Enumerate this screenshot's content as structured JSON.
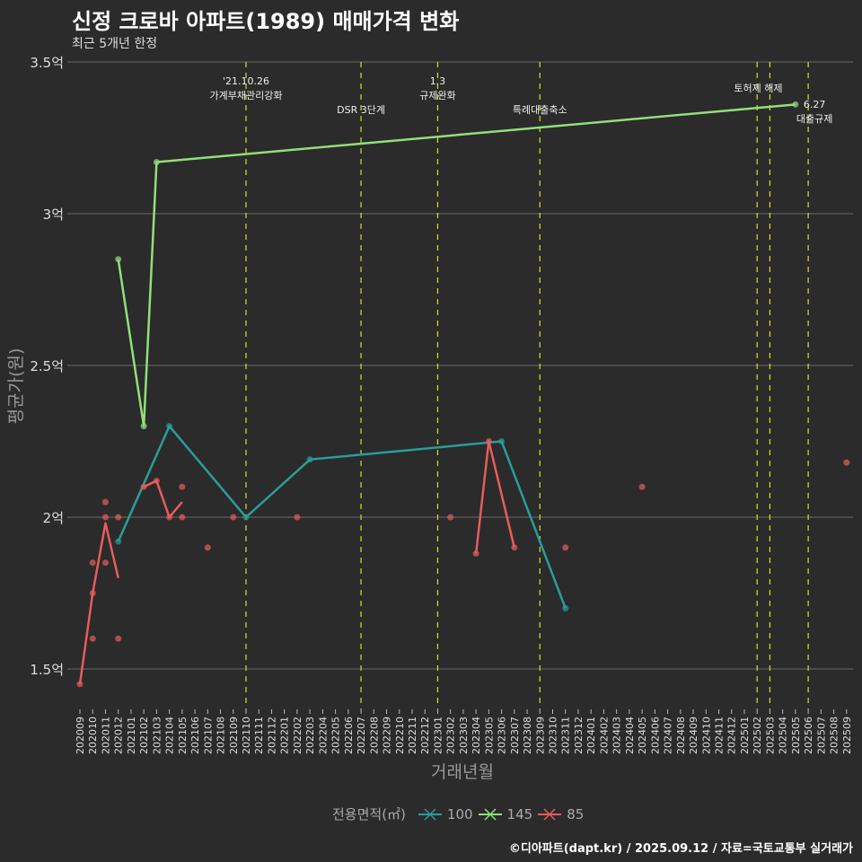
{
  "title": "신정 크로바 아파트(1989) 매매가격 변화",
  "subtitle": "최근 5개년 한정",
  "caption": "©디아파트(dapt.kr) / 2025.09.12 / 자료=국토교통부 실거래가",
  "chart_data": {
    "type": "line",
    "xlabel": "거래년월",
    "ylabel": "평균가(원)",
    "ylim": [
      1.35,
      3.55
    ],
    "yticks": [
      {
        "v": 1.5,
        "label": "1.5억"
      },
      {
        "v": 2,
        "label": "2억"
      },
      {
        "v": 2.5,
        "label": "2.5억"
      },
      {
        "v": 3,
        "label": "3억"
      },
      {
        "v": 3.5,
        "label": "3.5억"
      }
    ],
    "x": [
      "202009",
      "202010",
      "202011",
      "202012",
      "202101",
      "202102",
      "202103",
      "202104",
      "202105",
      "202106",
      "202107",
      "202108",
      "202109",
      "202110",
      "202111",
      "202112",
      "202201",
      "202202",
      "202203",
      "202204",
      "202205",
      "202206",
      "202207",
      "202208",
      "202209",
      "202210",
      "202211",
      "202212",
      "202301",
      "202302",
      "202303",
      "202304",
      "202305",
      "202306",
      "202307",
      "202308",
      "202309",
      "202310",
      "202311",
      "202312",
      "202401",
      "202402",
      "202403",
      "202404",
      "202405",
      "202406",
      "202407",
      "202408",
      "202409",
      "202410",
      "202411",
      "202412",
      "202501",
      "202502",
      "202503",
      "202504",
      "202505",
      "202506",
      "202507",
      "202508",
      "202509"
    ],
    "legend": {
      "title": "전용면적(㎡)",
      "position": "bottom"
    },
    "series": [
      {
        "name": "100",
        "color": "#2a9d9a",
        "segments": [
          [
            [
              "202012",
              1.92
            ],
            [
              "202104",
              2.3
            ],
            [
              "202110",
              2.0
            ],
            [
              "202203",
              2.19
            ],
            [
              "202306",
              2.25
            ],
            [
              "202311",
              1.7
            ]
          ]
        ],
        "points": [
          [
            "202012",
            1.92
          ],
          [
            "202104",
            2.3
          ],
          [
            "202110",
            2.0
          ],
          [
            "202203",
            2.19
          ],
          [
            "202306",
            2.25
          ],
          [
            "202311",
            1.7
          ]
        ]
      },
      {
        "name": "145",
        "color": "#90e07a",
        "segments": [
          [
            [
              "202012",
              2.85
            ],
            [
              "202102",
              2.3
            ],
            [
              "202103",
              3.17
            ],
            [
              "202505",
              3.36
            ]
          ]
        ],
        "points": [
          [
            "202012",
            2.85
          ],
          [
            "202102",
            2.3
          ],
          [
            "202103",
            3.17
          ],
          [
            "202505",
            3.36
          ]
        ]
      },
      {
        "name": "85",
        "color": "#e85c5c",
        "segments": [
          [
            [
              "202009",
              1.45
            ],
            [
              "202010",
              1.75
            ],
            [
              "202011",
              1.98
            ],
            [
              "202012",
              1.8
            ]
          ],
          [
            [
              "202102",
              2.1
            ],
            [
              "202103",
              2.12
            ],
            [
              "202104",
              2.0
            ],
            [
              "202105",
              2.05
            ]
          ],
          [
            [
              "202304",
              1.88
            ],
            [
              "202305",
              2.25
            ],
            [
              "202307",
              1.9
            ]
          ]
        ],
        "points": [
          [
            "202009",
            1.45
          ],
          [
            "202010",
            1.85
          ],
          [
            "202010",
            1.75
          ],
          [
            "202010",
            1.6
          ],
          [
            "202011",
            2.05
          ],
          [
            "202011",
            2.0
          ],
          [
            "202011",
            1.85
          ],
          [
            "202012",
            2.0
          ],
          [
            "202012",
            1.6
          ],
          [
            "202102",
            2.1
          ],
          [
            "202103",
            2.12
          ],
          [
            "202104",
            2.0
          ],
          [
            "202105",
            2.1
          ],
          [
            "202105",
            2.0
          ],
          [
            "202107",
            1.9
          ],
          [
            "202109",
            2.0
          ],
          [
            "202202",
            2.0
          ],
          [
            "202302",
            2.0
          ],
          [
            "202304",
            1.88
          ],
          [
            "202305",
            2.25
          ],
          [
            "202307",
            1.9
          ],
          [
            "202311",
            1.9
          ],
          [
            "202405",
            2.1
          ],
          [
            "202509",
            2.18
          ]
        ]
      }
    ],
    "events": [
      {
        "x": "202110",
        "lines": [
          "'21.10.26",
          "가계부채관리강화"
        ],
        "row": 0
      },
      {
        "x": "202207",
        "lines": [
          "DSR 3단계"
        ],
        "row": 2
      },
      {
        "x": "202301",
        "lines": [
          "1.3",
          "규제완화"
        ],
        "row": 0
      },
      {
        "x": "202309",
        "lines": [
          "특례대출축소"
        ],
        "row": 2
      },
      {
        "x": "202502",
        "lines": [],
        "row": 0
      },
      {
        "x": "202503",
        "lines": [
          "토허제 해제"
        ],
        "row": 1,
        "align": "left"
      },
      {
        "x": "202506",
        "lines": [
          "6.27",
          "대출규제"
        ],
        "row": 1.7
      }
    ]
  }
}
